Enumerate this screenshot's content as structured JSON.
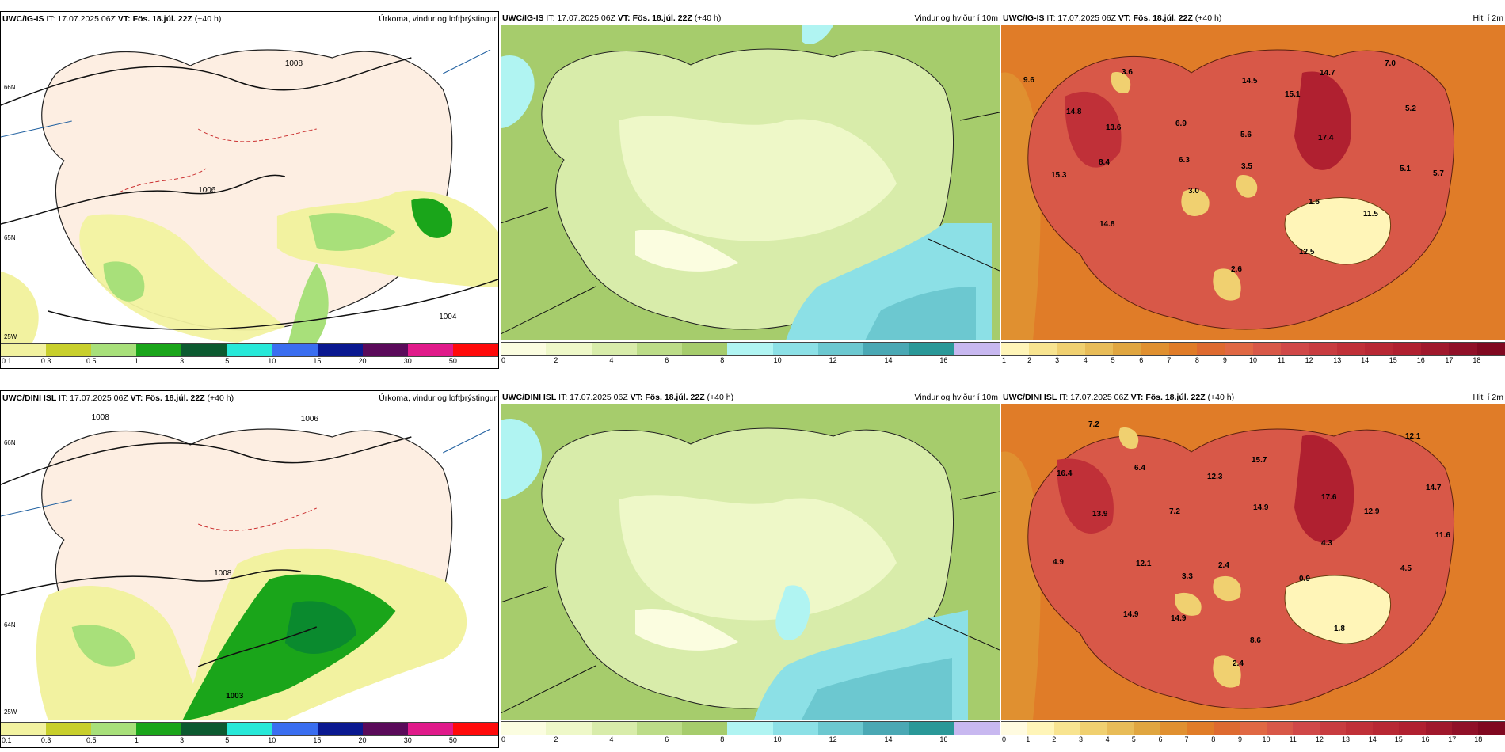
{
  "rows": [
    {
      "header_left_model": "UWC/IG-IS",
      "header_left_it": "IT: 17.07.2025 06Z",
      "header_left_vt": "VT: Fös. 18.júl. 22Z",
      "header_left_offset": "(+40 h)",
      "panels": [
        {
          "title": "Úrkoma, vindur og loftþrýstingur",
          "ticks": [
            "0.1",
            "0.3",
            "0.5",
            "1",
            "3",
            "5",
            "10",
            "15",
            "20",
            "30",
            "50"
          ]
        },
        {
          "title": "Vindur og hviður í 10m",
          "ticks": [
            "0",
            "2",
            "4",
            "6",
            "8",
            "10",
            "12",
            "14",
            "16"
          ]
        },
        {
          "title": "Hiti í 2m",
          "ticks": [
            "1",
            "2",
            "3",
            "4",
            "5",
            "6",
            "7",
            "8",
            "9",
            "10",
            "11",
            "12",
            "13",
            "14",
            "15",
            "16",
            "17",
            "18"
          ],
          "labels": [
            "9.6",
            "3.6",
            "14.7",
            "7.0",
            "14.5",
            "15.1",
            "14.8",
            "13.6",
            "6.9",
            "5.6",
            "17.4",
            "5.2",
            "6.3",
            "5.7",
            "8.4",
            "3.5",
            "5.1",
            "15.3",
            "3.0",
            "1.6",
            "11.5",
            "14.8",
            "12.5",
            "2.6"
          ]
        }
      ],
      "isobars": [
        "1008",
        "1006",
        "1004"
      ],
      "lat_labels": [
        "66N",
        "65N"
      ],
      "lon_label": "25W"
    },
    {
      "header_left_model": "UWC/DINI ISL",
      "header_left_it": "IT: 17.07.2025 06Z",
      "header_left_vt": "VT: Fös. 18.júl. 22Z",
      "header_left_offset": "(+40 h)",
      "panels": [
        {
          "title": "Úrkoma, vindur og loftþrýstingur",
          "ticks": [
            "0.1",
            "0.3",
            "0.5",
            "1",
            "3",
            "5",
            "10",
            "15",
            "20",
            "30",
            "50"
          ]
        },
        {
          "title": "Vindur og hviður í 10m",
          "ticks": [
            "0",
            "2",
            "4",
            "6",
            "8",
            "10",
            "12",
            "14",
            "16"
          ]
        },
        {
          "title": "Hiti í 2m",
          "ticks": [
            "0",
            "1",
            "2",
            "3",
            "4",
            "5",
            "6",
            "7",
            "8",
            "9",
            "10",
            "11",
            "12",
            "13",
            "14",
            "15",
            "16",
            "17",
            "18"
          ],
          "labels": [
            "7.2",
            "12.1",
            "16.4",
            "6.4",
            "15.7",
            "12.3",
            "14.7",
            "14.9",
            "17.6",
            "13.9",
            "7.2",
            "12.9",
            "11.6",
            "4.3",
            "4.9",
            "12.1",
            "2.4",
            "3.3",
            "0.9",
            "4.5",
            "14.9",
            "14.9",
            "8.6",
            "1.8",
            "2.4"
          ]
        }
      ],
      "isobars": [
        "1008",
        "1006",
        "1008",
        "1003"
      ],
      "lat_labels": [
        "66N",
        "64N"
      ],
      "lon_label": "25W"
    }
  ],
  "colors": {
    "precip_scale": [
      "#f2f2a0",
      "#c8cf2c",
      "#a8e07a",
      "#1aa51a",
      "#0a8a2e",
      "#0c5a30",
      "#27e8d8",
      "#3a6ef0",
      "#0a1890",
      "#5a0a5a",
      "#e01a8a",
      "#ff0a0a"
    ],
    "wind_scale": [
      "#fbfde0",
      "#eef8c8",
      "#d8ecaa",
      "#bcdc88",
      "#a6cc6c",
      "#b0f4f2",
      "#8ce0e6",
      "#6cc8d0",
      "#4aa8b4",
      "#2a9898",
      "#c8b8f0"
    ],
    "temp_scale": [
      "#fff5b8",
      "#f8e490",
      "#f0d070",
      "#e8bc58",
      "#e0a640",
      "#e09030",
      "#e07c28",
      "#de6a30",
      "#e06844",
      "#d85848",
      "#d04848",
      "#c83c40",
      "#c03038",
      "#b82834",
      "#b02030",
      "#a0182c",
      "#901028",
      "#800820",
      "#700418"
    ],
    "land_low": "#fdeee2"
  }
}
